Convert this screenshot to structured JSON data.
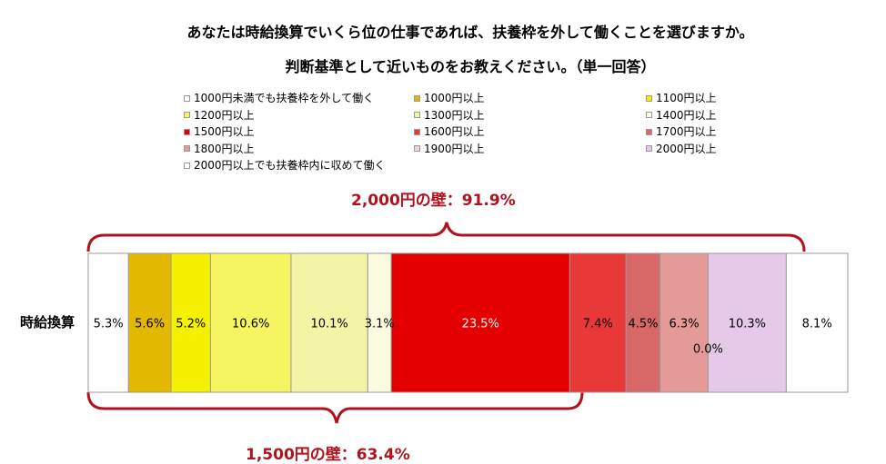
{
  "title_line1": "あなたは時給換算でいくら位の仕事であれば、扶養枠を外して働くことを選びますか。",
  "title_line2": "判断基準として近いものをお教えください。（単一回答）",
  "legend": [
    {
      "label": "1000円未満でも扶養枠を外して働く",
      "color": "#ffffff"
    },
    {
      "label": "1000円以上",
      "color": "#e2b800"
    },
    {
      "label": "1100円以上",
      "color": "#f5f000"
    },
    {
      "label": "1200円以上",
      "color": "#f6f460"
    },
    {
      "label": "1300円以上",
      "color": "#f4f4a6"
    },
    {
      "label": "1400円以上",
      "color": "#fbfbe0"
    },
    {
      "label": "1500円以上",
      "color": "#e40000"
    },
    {
      "label": "1600円以上",
      "color": "#e83838"
    },
    {
      "label": "1700円以上",
      "color": "#d86868"
    },
    {
      "label": "1800円以上",
      "color": "#e49a96"
    },
    {
      "label": "1900円以上",
      "color": "#f0d2d8"
    },
    {
      "label": "2000円以上",
      "color": "#e6c8e8"
    },
    {
      "label": "2000円以上でも扶養枠内に収めて働く",
      "color": "#ffffff"
    }
  ],
  "bracket_top_label": "2,000円の壁：91.9%",
  "bracket_bottom_label": "1,500円の壁：63.4%",
  "chart_data": {
    "type": "bar",
    "orientation": "horizontal-stacked-100",
    "categories": [
      "時給換算"
    ],
    "series": [
      {
        "name": "1000円未満でも扶養枠を外して働く",
        "values": [
          5.3
        ],
        "label": "5.3%"
      },
      {
        "name": "1000円以上",
        "values": [
          5.6
        ],
        "label": "5.6%"
      },
      {
        "name": "1100円以上",
        "values": [
          5.2
        ],
        "label": "5.2%"
      },
      {
        "name": "1200円以上",
        "values": [
          10.6
        ],
        "label": "10.6%"
      },
      {
        "name": "1300円以上",
        "values": [
          10.1
        ],
        "label": "10.1%"
      },
      {
        "name": "1400円以上",
        "values": [
          3.1
        ],
        "label": "3.1%"
      },
      {
        "name": "1500円以上",
        "values": [
          23.5
        ],
        "label": "23.5%"
      },
      {
        "name": "1600円以上",
        "values": [
          7.4
        ],
        "label": "7.4%"
      },
      {
        "name": "1700円以上",
        "values": [
          4.5
        ],
        "label": "4.5%"
      },
      {
        "name": "1800円以上",
        "values": [
          6.3
        ],
        "label": "6.3%"
      },
      {
        "name": "1900円以上",
        "values": [
          0.0
        ],
        "label": "0.0%"
      },
      {
        "name": "2000円以上",
        "values": [
          10.3
        ],
        "label": "10.3%"
      },
      {
        "name": "2000円以上でも扶養枠内に収めて働く",
        "values": [
          8.1
        ],
        "label": "8.1%"
      }
    ]
  }
}
